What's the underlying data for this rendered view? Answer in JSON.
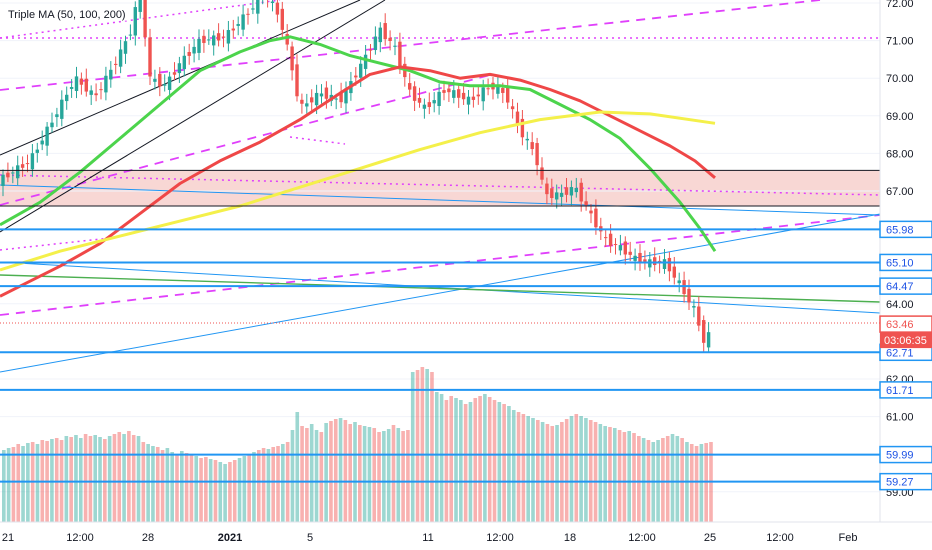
{
  "indicator": {
    "label": "Triple MA (50, 100, 200)"
  },
  "chart_data": {
    "type": "candlestick",
    "y_axis": {
      "range": [
        58.4,
        72.1
      ],
      "ticks": [
        {
          "v": 72.0,
          "label": "72.00"
        },
        {
          "v": 71.0,
          "label": "71.00"
        },
        {
          "v": 70.0,
          "label": "70.00"
        },
        {
          "v": 69.0,
          "label": "69.00"
        },
        {
          "v": 68.0,
          "label": "68.00"
        },
        {
          "v": 67.0,
          "label": "67.00"
        },
        {
          "v": 64.0,
          "label": "64.00"
        },
        {
          "v": 62.0,
          "label": "62.00"
        },
        {
          "v": 61.0,
          "label": "61.00"
        },
        {
          "v": 59.0,
          "label": "59.00"
        }
      ]
    },
    "x_axis": {
      "labels": [
        "21",
        "12:00",
        "28",
        "2021",
        "5",
        "11",
        "12:00",
        "18",
        "12:00",
        "25",
        "12:00",
        "Feb"
      ]
    },
    "price_levels": [
      {
        "v": 65.98,
        "label": "65.98",
        "color": "#2196f3"
      },
      {
        "v": 65.1,
        "label": "65.10",
        "color": "#2196f3"
      },
      {
        "v": 64.47,
        "label": "64.47",
        "color": "#2196f3"
      },
      {
        "v": 62.71,
        "label": "62.71",
        "color": "#2196f3"
      },
      {
        "v": 61.71,
        "label": "61.71",
        "color": "#2196f3"
      },
      {
        "v": 59.99,
        "label": "59.99",
        "color": "#2196f3"
      },
      {
        "v": 59.27,
        "label": "59.27",
        "color": "#2196f3"
      }
    ],
    "last_price": {
      "v": 63.46,
      "label": "63.46",
      "countdown": "03:06:35",
      "color": "#ef5350"
    },
    "zone": {
      "from": 66.6,
      "to": 67.55,
      "color": "#f8d7d4"
    },
    "moving_averages": [
      {
        "period": 50,
        "color": "#4cd44c",
        "points": [
          [
            0,
            66.1
          ],
          [
            40,
            66.7
          ],
          [
            80,
            67.5
          ],
          [
            120,
            68.4
          ],
          [
            160,
            69.3
          ],
          [
            200,
            70.2
          ],
          [
            240,
            70.7
          ],
          [
            270,
            71.0
          ],
          [
            290,
            71.1
          ],
          [
            320,
            70.9
          ],
          [
            350,
            70.6
          ],
          [
            380,
            70.4
          ],
          [
            410,
            70.2
          ],
          [
            440,
            69.9
          ],
          [
            470,
            69.8
          ],
          [
            500,
            69.8
          ],
          [
            530,
            69.7
          ],
          [
            560,
            69.3
          ],
          [
            590,
            68.9
          ],
          [
            620,
            68.4
          ],
          [
            650,
            67.6
          ],
          [
            680,
            66.7
          ],
          [
            700,
            66.0
          ],
          [
            715,
            65.4
          ]
        ]
      },
      {
        "period": 100,
        "color": "#ef4747",
        "points": [
          [
            0,
            64.2
          ],
          [
            30,
            64.6
          ],
          [
            60,
            65.0
          ],
          [
            100,
            65.6
          ],
          [
            140,
            66.4
          ],
          [
            180,
            67.2
          ],
          [
            220,
            67.8
          ],
          [
            260,
            68.3
          ],
          [
            300,
            68.9
          ],
          [
            340,
            69.6
          ],
          [
            370,
            70.1
          ],
          [
            400,
            70.3
          ],
          [
            430,
            70.2
          ],
          [
            460,
            70.0
          ],
          [
            490,
            70.1
          ],
          [
            520,
            69.95
          ],
          [
            550,
            69.7
          ],
          [
            580,
            69.4
          ],
          [
            610,
            69.0
          ],
          [
            640,
            68.6
          ],
          [
            670,
            68.2
          ],
          [
            695,
            67.8
          ],
          [
            715,
            67.35
          ]
        ]
      },
      {
        "period": 200,
        "color": "#f4f04a",
        "points": [
          [
            0,
            64.9
          ],
          [
            60,
            65.4
          ],
          [
            120,
            65.8
          ],
          [
            180,
            66.2
          ],
          [
            240,
            66.6
          ],
          [
            300,
            67.1
          ],
          [
            360,
            67.6
          ],
          [
            420,
            68.1
          ],
          [
            480,
            68.55
          ],
          [
            540,
            68.9
          ],
          [
            600,
            69.1
          ],
          [
            650,
            69.05
          ],
          [
            715,
            68.8
          ]
        ]
      }
    ],
    "volume_heights": [
      72,
      74,
      75,
      78,
      76,
      79,
      80,
      78,
      82,
      81,
      83,
      84,
      82,
      86,
      85,
      87,
      84,
      88,
      86,
      87,
      85,
      83,
      86,
      88,
      90,
      88,
      91,
      87,
      86,
      80,
      78,
      76,
      75,
      72,
      74,
      70,
      68,
      71,
      69,
      67,
      66,
      64,
      65,
      63,
      62,
      60,
      58,
      60,
      62,
      64,
      66,
      68,
      70,
      72,
      74,
      73,
      75,
      76,
      78,
      80,
      92,
      110,
      96,
      94,
      98,
      92,
      90,
      99,
      101,
      103,
      104,
      102,
      98,
      100,
      97,
      96,
      95,
      94,
      90,
      91,
      93,
      97,
      94,
      91,
      92,
      150,
      152,
      155,
      153,
      150,
      130,
      128,
      122,
      126,
      124,
      122,
      118,
      120,
      124,
      126,
      128,
      125,
      122,
      120,
      118,
      116,
      112,
      110,
      108,
      106,
      104,
      102,
      100,
      98,
      96,
      97,
      100,
      103,
      106,
      108,
      106,
      104,
      102,
      100,
      98,
      96,
      95,
      94,
      92,
      90,
      91,
      89,
      86,
      84,
      82,
      80,
      82,
      84,
      86,
      88,
      86,
      84,
      80,
      78,
      76,
      78,
      79,
      80
    ]
  }
}
